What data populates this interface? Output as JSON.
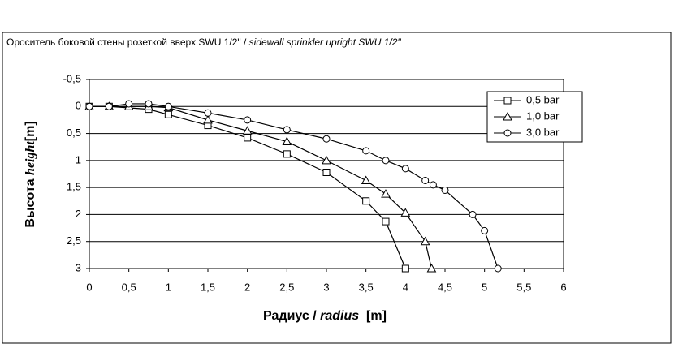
{
  "chart_data": {
    "type": "line",
    "title": [
      "Ороситель боковой стены розеткой вверх SWU 1/2\" / ",
      "sidewall sprinkler upright SWU 1/2\""
    ],
    "y_label": [
      "Высота ",
      "height",
      "[m]"
    ],
    "x_label": [
      "Радиус / ",
      "radius",
      "  [m]"
    ],
    "xlim": [
      0,
      6
    ],
    "xticks": [
      0,
      {
        "value": 0.5,
        "label": "0,5"
      },
      1,
      {
        "value": 1.5,
        "label": "1,5"
      },
      2,
      {
        "value": 2.5,
        "label": "2,5"
      },
      3,
      {
        "value": 3.5,
        "label": "3,5"
      },
      4,
      {
        "value": 4.5,
        "label": "4,5"
      },
      5,
      {
        "value": 5.5,
        "label": "5,5"
      },
      6
    ],
    "ylim": [
      -0.5,
      3
    ],
    "y_inverted": true,
    "yticks": [
      {
        "value": -0.5,
        "label": "-0,5"
      },
      0,
      {
        "value": 0.5,
        "label": "0,5"
      },
      1,
      {
        "value": 1.5,
        "label": "1,5"
      },
      2,
      {
        "value": 2.5,
        "label": "2,5"
      },
      3
    ],
    "grid": true,
    "legend": "upper right",
    "series": [
      {
        "name": "0,5 bar",
        "color": "#000000",
        "marker": "square",
        "x": [
          0,
          0.25,
          0.75,
          1,
          1.5,
          2,
          2.5,
          3,
          3.5,
          3.75,
          4
        ],
        "values": [
          0,
          0,
          0.05,
          0.15,
          0.35,
          0.58,
          0.88,
          1.22,
          1.75,
          2.13,
          3.0
        ]
      },
      {
        "name": "1,0 bar",
        "color": "#000000",
        "marker": "triangle",
        "x": [
          0,
          0.25,
          0.5,
          0.75,
          1,
          1.5,
          2,
          2.5,
          3,
          3.5,
          3.75,
          4,
          4.25,
          4.33
        ],
        "values": [
          0,
          0,
          0,
          0,
          0.02,
          0.25,
          0.45,
          0.65,
          1.0,
          1.37,
          1.62,
          1.97,
          2.5,
          3.0
        ]
      },
      {
        "name": "3,0 bar",
        "color": "#000000",
        "marker": "circle",
        "x": [
          0,
          0.25,
          0.5,
          0.75,
          1,
          1.5,
          2,
          2.5,
          3,
          3.5,
          3.75,
          4,
          4.25,
          4.35,
          4.5,
          4.85,
          5,
          5.17
        ],
        "values": [
          0,
          0,
          -0.05,
          -0.05,
          0,
          0.12,
          0.25,
          0.43,
          0.6,
          0.82,
          1.0,
          1.15,
          1.37,
          1.45,
          1.55,
          2.0,
          2.3,
          3.0
        ]
      }
    ]
  }
}
